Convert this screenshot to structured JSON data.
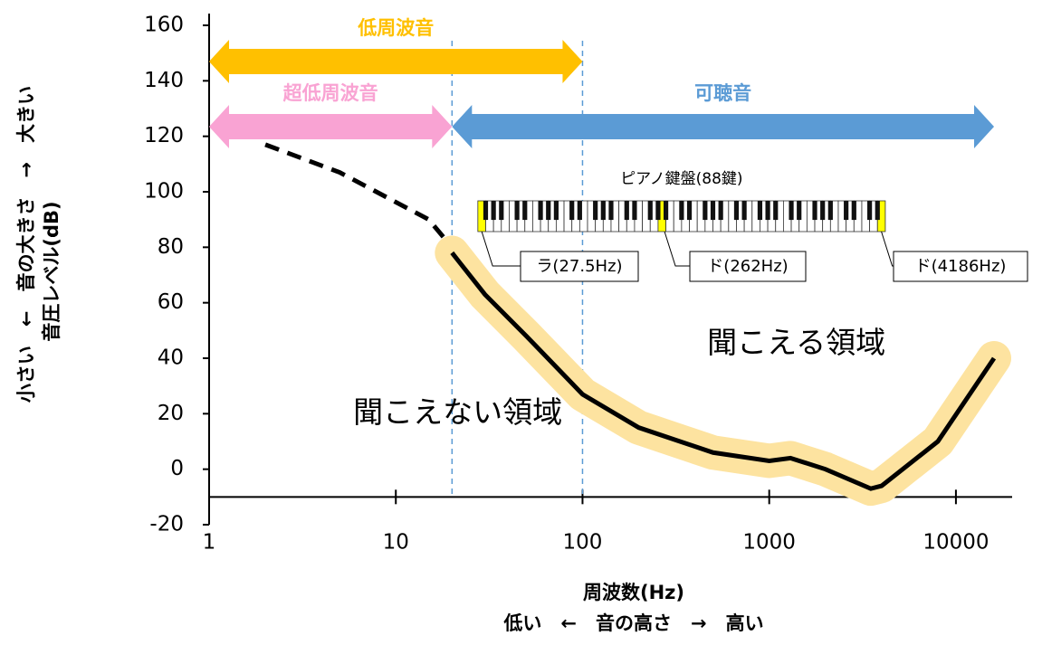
{
  "chart_data": {
    "type": "line",
    "xscale": "log",
    "xlabel": "周波数(Hz)",
    "xlabel2": "低い　←　音の高さ　→　高い",
    "ylabel": "小さい　←　音の大きさ　→　大きい",
    "ylabel2": "音圧レベル(dB)",
    "xlim": [
      1,
      20000
    ],
    "ylim": [
      -20,
      160
    ],
    "xaxis_at": -10,
    "xticks": [
      1,
      10,
      100,
      1000,
      10000
    ],
    "yticks": [
      -20,
      0,
      20,
      40,
      60,
      80,
      100,
      120,
      140,
      160
    ],
    "series": [
      {
        "style": "dashed",
        "color": "#000000",
        "x": [
          2,
          5,
          15,
          20
        ],
        "values": [
          117,
          107,
          90,
          80
        ]
      },
      {
        "style": "solid",
        "color": "#000000",
        "band_color": "#fde3a0",
        "x": [
          20,
          30,
          50,
          100,
          200,
          500,
          1000,
          1300,
          2000,
          3500,
          4000,
          8000,
          16000
        ],
        "values": [
          78,
          63,
          48,
          27,
          15,
          6,
          3,
          4,
          0,
          -7,
          -6,
          10,
          40
        ]
      }
    ],
    "ranges": [
      {
        "label": "低周波音",
        "from": 1,
        "to": 100,
        "color": "#ffc000"
      },
      {
        "label": "超低周波音",
        "from": 1,
        "to": 20,
        "color": "#f9a3d3"
      },
      {
        "label": "可聴音",
        "from": 20,
        "to": 16000,
        "color": "#5b9bd5"
      }
    ],
    "boundaries": [
      20,
      100
    ],
    "piano": {
      "title": "ピアノ鍵盤(88鍵)",
      "from": 27.5,
      "to": 4186,
      "markers": [
        {
          "label": "ラ(27.5Hz)",
          "freq": 27.5
        },
        {
          "label": "ド(262Hz)",
          "freq": 262
        },
        {
          "label": "ド(4186Hz)",
          "freq": 4186
        }
      ]
    },
    "regions": [
      {
        "label": "聞こえない領域",
        "x": 30,
        "y": 20
      },
      {
        "label": "聞こえる領域",
        "x": 1000,
        "y": 45
      }
    ]
  }
}
